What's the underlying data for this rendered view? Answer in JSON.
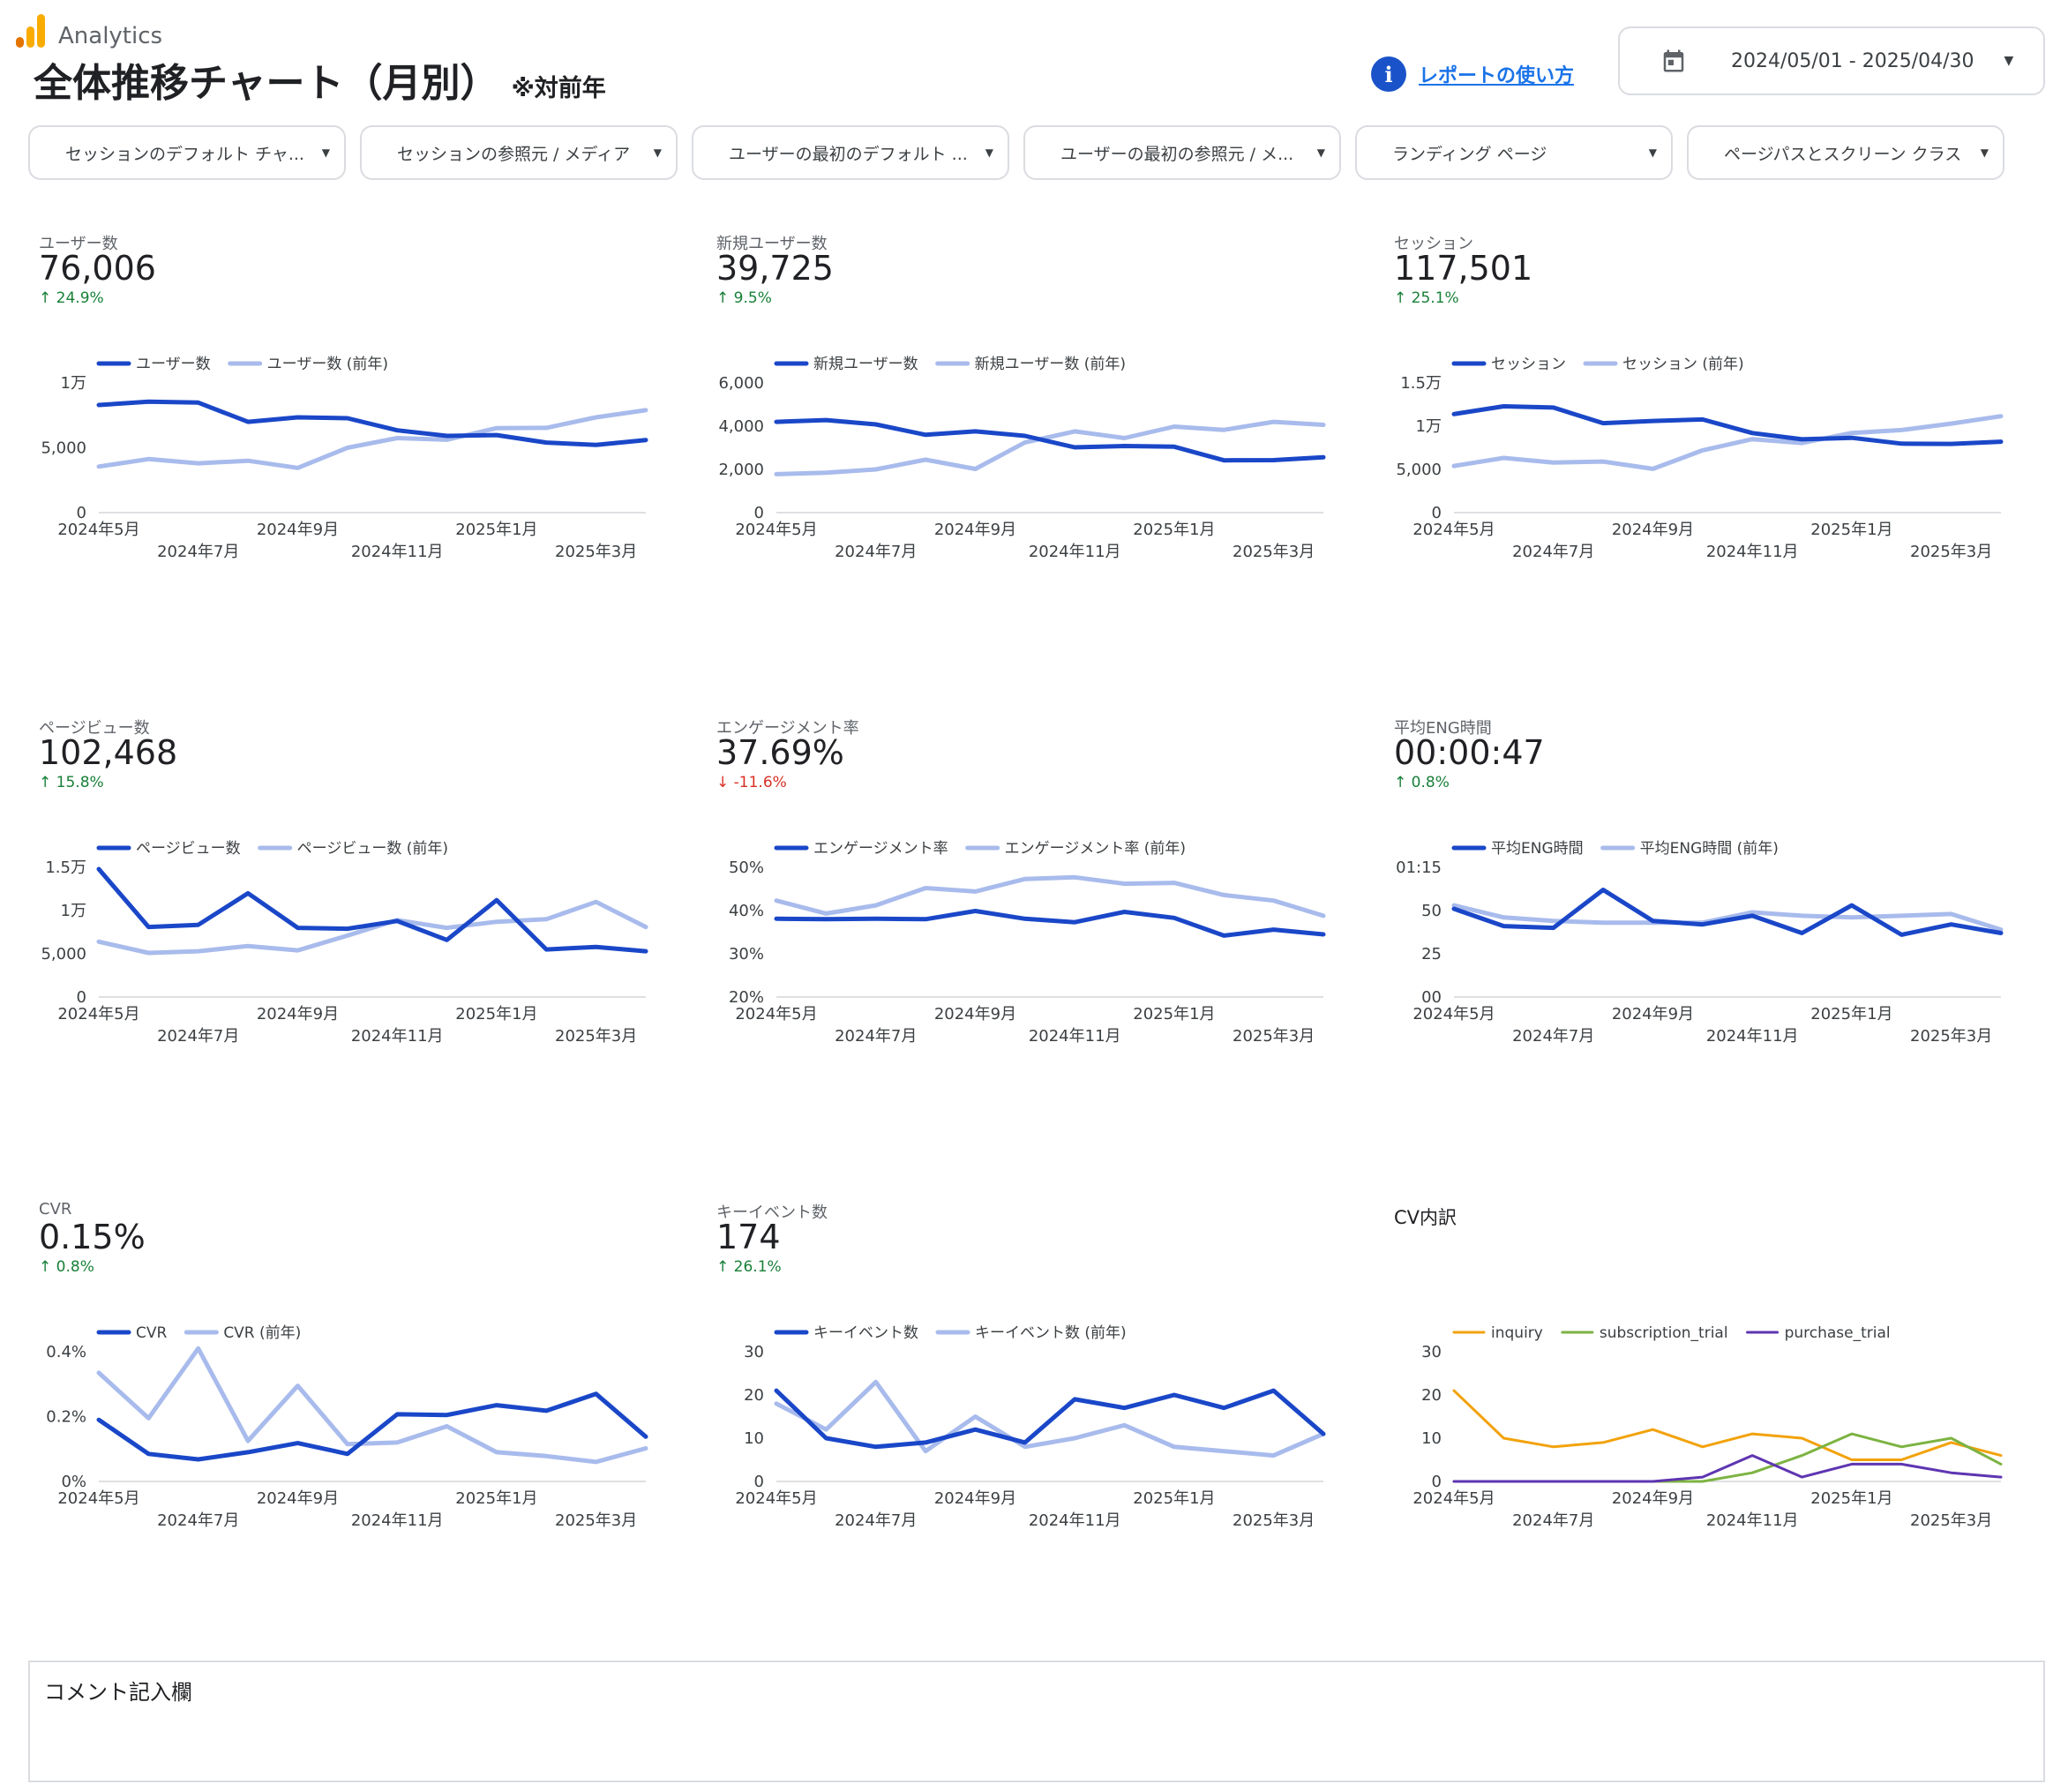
{
  "header": {
    "brand": "Analytics",
    "title": "全体推移チャート（月別）",
    "title_note": "※対前年",
    "help_link": "レポートの使い方",
    "date_range": "2024/05/01 - 2025/04/30",
    "icons": {
      "logo": "analytics-logo-icon",
      "help": "info-icon",
      "calendar": "calendar-icon",
      "dropdown": "caret-down-icon"
    },
    "colors": {
      "logo_orange": "#f9ab00",
      "logo_dark": "#e37400",
      "link": "#1a73e8",
      "info_bg": "#1a53c9"
    }
  },
  "filters": [
    "セッションのデフォルト チャ...",
    "セッションの参照元 / メディア",
    "ユーザーの最初のデフォルト ...",
    "ユーザーの最初の参照元 / メ...",
    "ランディング ページ",
    "ページパスとスクリーン クラス"
  ],
  "colors": {
    "current": "#1a47c8",
    "previous": "#a8bbec",
    "up": "#188038",
    "down": "#d93025",
    "inquiry": "#f2a20c",
    "subscription_trial": "#7cb342",
    "purchase_trial": "#5e35b1"
  },
  "x_labels_row1": [
    "2024年5月",
    "2024年9月",
    "2025年1月"
  ],
  "x_labels_row2": [
    "2024年7月",
    "2024年11月",
    "2025年3月"
  ],
  "cards": [
    {
      "title": "ユーザー数",
      "value": "76,006",
      "delta": "24.9%",
      "trend": "up",
      "chart_data": {
        "type": "line",
        "x": [
          "2024年5月",
          "2024年6月",
          "2024年7月",
          "2024年8月",
          "2024年9月",
          "2024年10月",
          "2024年11月",
          "2024年12月",
          "2025年1月",
          "2025年2月",
          "2025年3月",
          "2025年4月"
        ],
        "series": [
          {
            "name": "ユーザー数",
            "values": [
              8300,
              8550,
              8480,
              7000,
              7350,
              7280,
              6350,
              5920,
              5980,
              5400,
              5220,
              5600
            ]
          },
          {
            "name": "ユーザー数 (前年)",
            "values": [
              3550,
              4130,
              3800,
              4000,
              3450,
              5000,
              5750,
              5620,
              6520,
              6540,
              7350,
              7900
            ]
          }
        ],
        "ylim": [
          0,
          10000
        ],
        "yticks": [
          "0",
          "5,000",
          "1万"
        ]
      }
    },
    {
      "title": "新規ユーザー数",
      "value": "39,725",
      "delta": "9.5%",
      "trend": "up",
      "chart_data": {
        "type": "line",
        "x": [
          "2024年5月",
          "2024年6月",
          "2024年7月",
          "2024年8月",
          "2024年9月",
          "2024年10月",
          "2024年11月",
          "2024年12月",
          "2025年1月",
          "2025年2月",
          "2025年3月",
          "2025年4月"
        ],
        "series": [
          {
            "name": "新規ユーザー数",
            "values": [
              4200,
              4280,
              4080,
              3600,
              3760,
              3550,
              3020,
              3080,
              3050,
              2420,
              2430,
              2560
            ]
          },
          {
            "name": "新規ユーザー数 (前年)",
            "values": [
              1780,
              1850,
              2000,
              2450,
              2020,
              3250,
              3760,
              3450,
              3980,
              3830,
              4200,
              4060
            ]
          }
        ],
        "ylim": [
          0,
          6000
        ],
        "yticks": [
          "0",
          "2,000",
          "4,000",
          "6,000"
        ]
      }
    },
    {
      "title": "セッション",
      "value": "117,501",
      "delta": "25.1%",
      "trend": "up",
      "chart_data": {
        "type": "line",
        "x": [
          "2024年5月",
          "2024年6月",
          "2024年7月",
          "2024年8月",
          "2024年9月",
          "2024年10月",
          "2024年11月",
          "2024年12月",
          "2025年1月",
          "2025年2月",
          "2025年3月",
          "2025年4月"
        ],
        "series": [
          {
            "name": "セッション",
            "values": [
              11400,
              12300,
              12150,
              10350,
              10600,
              10780,
              9200,
              8480,
              8650,
              7980,
              7950,
              8200
            ]
          },
          {
            "name": "セッション (前年)",
            "values": [
              5400,
              6330,
              5790,
              5910,
              5060,
              7200,
              8500,
              8050,
              9210,
              9550,
              10300,
              11150
            ]
          }
        ],
        "ylim": [
          0,
          15000
        ],
        "yticks": [
          "0",
          "5,000",
          "1万",
          "1.5万"
        ]
      }
    },
    {
      "title": "ページビュー数",
      "value": "102,468",
      "delta": "15.8%",
      "trend": "up",
      "chart_data": {
        "type": "line",
        "x": [
          "2024年5月",
          "2024年6月",
          "2024年7月",
          "2024年8月",
          "2024年9月",
          "2024年10月",
          "2024年11月",
          "2024年12月",
          "2025年1月",
          "2025年2月",
          "2025年3月",
          "2025年4月"
        ],
        "series": [
          {
            "name": "ページビュー数",
            "values": [
              14800,
              8100,
              8350,
              12000,
              8000,
              7900,
              8800,
              6600,
              11200,
              5500,
              5800,
              5300
            ]
          },
          {
            "name": "ページビュー数 (前年)",
            "values": [
              6400,
              5100,
              5300,
              5900,
              5400,
              7100,
              8900,
              8000,
              8700,
              9000,
              11000,
              8100
            ]
          }
        ],
        "ylim": [
          0,
          15000
        ],
        "yticks": [
          "0",
          "5,000",
          "1万",
          "1.5万"
        ]
      }
    },
    {
      "title": "エンゲージメント率",
      "value": "37.69%",
      "delta": "-11.6%",
      "trend": "down",
      "chart_data": {
        "type": "line",
        "x": [
          "2024年5月",
          "2024年6月",
          "2024年7月",
          "2024年8月",
          "2024年9月",
          "2024年10月",
          "2024年11月",
          "2024年12月",
          "2025年1月",
          "2025年2月",
          "2025年3月",
          "2025年4月"
        ],
        "series": [
          {
            "name": "エンゲージメント率",
            "values": [
              38.1,
              38.0,
              38.1,
              38.0,
              39.9,
              38.1,
              37.3,
              39.7,
              38.3,
              34.2,
              35.6,
              34.5
            ]
          },
          {
            "name": "エンゲージメント率 (前年)",
            "values": [
              42.3,
              39.3,
              41.2,
              45.2,
              44.4,
              47.3,
              47.7,
              46.2,
              46.4,
              43.6,
              42.3,
              38.8
            ]
          }
        ],
        "ylim": [
          20,
          50
        ],
        "yticks": [
          "20%",
          "30%",
          "40%",
          "50%"
        ]
      }
    },
    {
      "title": "平均ENG時間",
      "value": "00:00:47",
      "delta": "0.8%",
      "trend": "up",
      "chart_data": {
        "type": "line",
        "x": [
          "2024年5月",
          "2024年6月",
          "2024年7月",
          "2024年8月",
          "2024年9月",
          "2024年10月",
          "2024年11月",
          "2024年12月",
          "2025年1月",
          "2025年2月",
          "2025年3月",
          "2025年4月"
        ],
        "series": [
          {
            "name": "平均ENG時間",
            "values": [
              51,
              41,
              40,
              62,
              44,
              42,
              47,
              37,
              53,
              36,
              42,
              37
            ]
          },
          {
            "name": "平均ENG時間 (前年)",
            "values": [
              53,
              46,
              44,
              43,
              43,
              43,
              49,
              47,
              46,
              47,
              48,
              39
            ]
          }
        ],
        "ylim": [
          0,
          75
        ],
        "yticks": [
          "00",
          "25",
          "50",
          "01:15"
        ]
      }
    },
    {
      "title": "CVR",
      "value": "0.15%",
      "delta": "0.8%",
      "trend": "up",
      "chart_data": {
        "type": "line",
        "x": [
          "2024年5月",
          "2024年6月",
          "2024年7月",
          "2024年8月",
          "2024年9月",
          "2024年10月",
          "2024年11月",
          "2024年12月",
          "2025年1月",
          "2025年2月",
          "2025年3月",
          "2025年4月"
        ],
        "series": [
          {
            "name": "CVR",
            "values": [
              0.19,
              0.085,
              0.068,
              0.09,
              0.118,
              0.085,
              0.207,
              0.205,
              0.235,
              0.218,
              0.27,
              0.138
            ]
          },
          {
            "name": "CVR (前年)",
            "values": [
              0.335,
              0.195,
              0.41,
              0.125,
              0.295,
              0.115,
              0.12,
              0.17,
              0.09,
              0.078,
              0.06,
              0.102
            ]
          }
        ],
        "ylim": [
          0,
          0.4
        ],
        "yticks": [
          "0%",
          "0.2%",
          "0.4%"
        ]
      }
    },
    {
      "title": "キーイベント数",
      "value": "174",
      "delta": "26.1%",
      "trend": "up",
      "chart_data": {
        "type": "line",
        "x": [
          "2024年5月",
          "2024年6月",
          "2024年7月",
          "2024年8月",
          "2024年9月",
          "2024年10月",
          "2024年11月",
          "2024年12月",
          "2025年1月",
          "2025年2月",
          "2025年3月",
          "2025年4月"
        ],
        "series": [
          {
            "name": "キーイベント数",
            "values": [
              21,
              10,
              8,
              9,
              12,
              9,
              19,
              17,
              20,
              17,
              21,
              11
            ]
          },
          {
            "name": "キーイベント数 (前年)",
            "values": [
              18,
              12,
              23,
              7,
              15,
              8,
              10,
              13,
              8,
              7,
              6,
              11
            ]
          }
        ],
        "ylim": [
          0,
          30
        ],
        "yticks": [
          "0",
          "10",
          "20",
          "30"
        ]
      }
    },
    {
      "title": "CV内訳",
      "chart_data": {
        "type": "line",
        "x": [
          "2024年5月",
          "2024年6月",
          "2024年7月",
          "2024年8月",
          "2024年9月",
          "2024年10月",
          "2024年11月",
          "2024年12月",
          "2025年1月",
          "2025年2月",
          "2025年3月",
          "2025年4月"
        ],
        "series": [
          {
            "name": "inquiry",
            "values": [
              21,
              10,
              8,
              9,
              12,
              8,
              11,
              10,
              5,
              5,
              9,
              6
            ]
          },
          {
            "name": "subscription_trial",
            "values": [
              0,
              0,
              0,
              0,
              0,
              0,
              2,
              6,
              11,
              8,
              10,
              4
            ]
          },
          {
            "name": "purchase_trial",
            "values": [
              0,
              0,
              0,
              0,
              0,
              1,
              6,
              1,
              4,
              4,
              2,
              1
            ]
          }
        ],
        "ylim": [
          0,
          30
        ],
        "yticks": [
          "0",
          "10",
          "20",
          "30"
        ]
      }
    }
  ],
  "comment": {
    "title": "コメント記入欄"
  }
}
